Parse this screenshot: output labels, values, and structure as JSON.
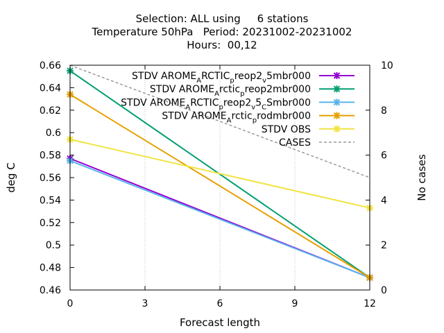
{
  "chart_data": {
    "type": "line",
    "title_lines": [
      "Selection: ALL using     6 stations",
      "Temperature 50hPa   Period: 20231002-20231002",
      "Hours:  00,12"
    ],
    "xlabel": "Forecast length",
    "ylabel": "deg C",
    "y2label": "No cases",
    "x": [
      0,
      12
    ],
    "xticks": [
      "0",
      "3",
      "6",
      "9",
      "12"
    ],
    "xlim": [
      0,
      12
    ],
    "ylim": [
      0.46,
      0.66
    ],
    "yticks": [
      "0.46",
      "0.48",
      "0.5",
      "0.52",
      "0.54",
      "0.56",
      "0.58",
      "0.6",
      "0.62",
      "0.64",
      "0.66"
    ],
    "y2lim": [
      0,
      10
    ],
    "y2ticks": [
      "0",
      "2",
      "4",
      "6",
      "8",
      "10"
    ],
    "grid": true,
    "legend_position": "top-right",
    "series": [
      {
        "name": "STDV AROME_ARCTIC_preop2_v5mbr000",
        "legend_parts": [
          "STDV AROME",
          "A",
          "RCTIC",
          "p",
          "reop2",
          "v",
          "5mbr000"
        ],
        "color": "#9400d3",
        "marker": "x",
        "axis": "y",
        "values": [
          0.577,
          0.471
        ]
      },
      {
        "name": "STDV AROME_Arctic_preop2mbr000",
        "legend_parts": [
          "STDV AROME",
          "A",
          "rctic",
          "p",
          "reop2mbr000"
        ],
        "color": "#009e73",
        "marker": "x",
        "axis": "y",
        "values": [
          0.655,
          0.471
        ]
      },
      {
        "name": "STDV AROME_ARCTIC_preop2_v5_CSmbr000",
        "legend_parts": [
          "STDV AROME",
          "A",
          "RCTIC",
          "p",
          "reop2",
          "v",
          "5",
          "C",
          "Smbr000"
        ],
        "color": "#56b4e9",
        "marker": "x",
        "axis": "y",
        "values": [
          0.575,
          0.471
        ]
      },
      {
        "name": "STDV AROME_Arctic_prodmbr000",
        "legend_parts": [
          "STDV AROME",
          "A",
          "rctic",
          "p",
          "rodmbr000"
        ],
        "color": "#e69f00",
        "marker": "x",
        "axis": "y",
        "values": [
          0.634,
          0.471
        ]
      },
      {
        "name": "STDV OBS",
        "legend_parts": [
          "STDV OBS"
        ],
        "color": "#f0e442",
        "marker": "x",
        "axis": "y",
        "values": [
          0.594,
          0.533
        ]
      },
      {
        "name": "CASES",
        "legend_parts": [
          "CASES"
        ],
        "color": "#999999",
        "marker": "none",
        "dashed": true,
        "axis": "y2",
        "values": [
          10,
          5
        ]
      }
    ]
  }
}
